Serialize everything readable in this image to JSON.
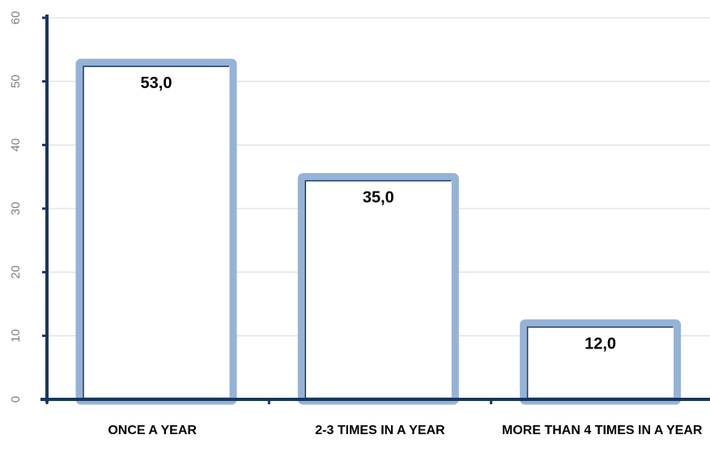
{
  "chart_data": {
    "type": "bar",
    "categories": [
      "ONCE A YEAR",
      "2-3 TIMES IN A YEAR",
      "MORE THAN 4 TIMES IN A YEAR"
    ],
    "values": [
      53.0,
      35.0,
      12.0
    ],
    "data_labels": [
      "53,0",
      "35,0",
      "12,0"
    ],
    "title": "",
    "xlabel": "",
    "ylabel": "",
    "ylim": [
      0,
      60
    ],
    "yticks": [
      0,
      10,
      20,
      30,
      40,
      50,
      60
    ],
    "grid": true,
    "legend": "none",
    "colors": {
      "bar_outline": "#95b3d7",
      "bar_fill": "#ffffff",
      "bar_inner_edge": "#1f3864",
      "axis": "#17375e",
      "gridline": "#d9d9d9",
      "tick_text": "#808080"
    }
  }
}
